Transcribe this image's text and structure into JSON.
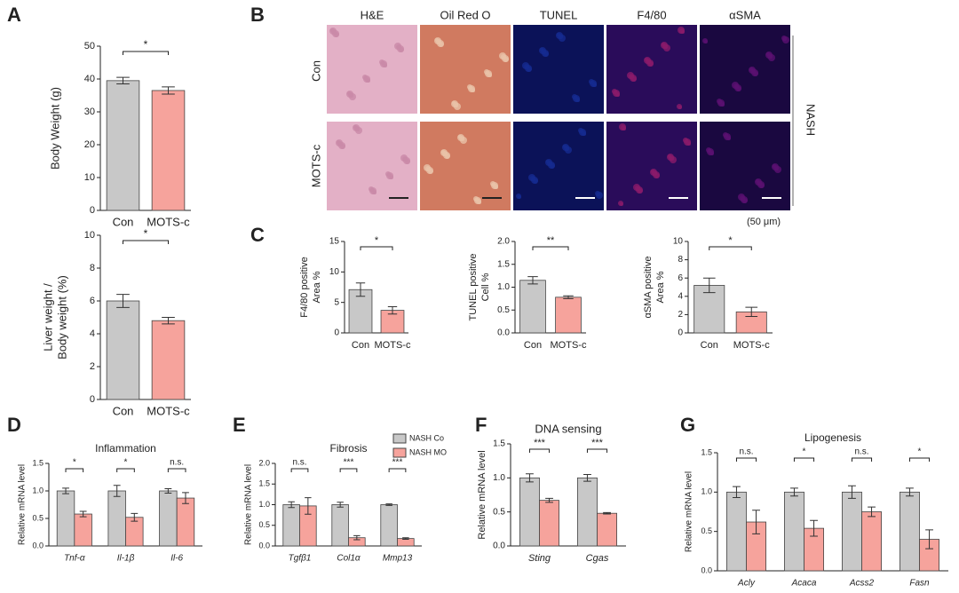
{
  "panel_labels": [
    "A",
    "B",
    "C",
    "D",
    "E",
    "F",
    "G"
  ],
  "histology": {
    "columns": [
      "H&E",
      "Oil Red O",
      "TUNEL",
      "F4/80",
      "αSMA"
    ],
    "rows": [
      "Con",
      "MOTS-c"
    ],
    "group": "NASH",
    "scale": "(50 μm)"
  },
  "chart_data": [
    {
      "type": "bar",
      "ylabel": [
        "Body Weight (g)"
      ],
      "categories": [
        "Con",
        "MOTS-c"
      ],
      "values": [
        39.5,
        36.5
      ],
      "errors": [
        1.0,
        1.1
      ],
      "colors": [
        "#c8c8c8",
        "#f6a39c"
      ],
      "ylim": [
        0,
        50
      ],
      "yticks": [
        0,
        10,
        20,
        30,
        40,
        50
      ],
      "significance": [
        "*"
      ]
    },
    {
      "type": "bar",
      "ylabel": [
        "Liver weight /",
        "Body weight (%)"
      ],
      "categories": [
        "Con",
        "MOTS-c"
      ],
      "values": [
        6.0,
        4.8
      ],
      "errors": [
        0.4,
        0.2
      ],
      "colors": [
        "#c8c8c8",
        "#f6a39c"
      ],
      "ylim": [
        0,
        10
      ],
      "yticks": [
        0,
        2,
        4,
        6,
        8,
        10
      ],
      "significance": [
        "*"
      ]
    },
    {
      "type": "bar",
      "ylabel": [
        "F4/80 positive",
        "Area %"
      ],
      "categories": [
        "Con",
        "MOTS-c"
      ],
      "values": [
        7.1,
        3.7
      ],
      "errors": [
        1.1,
        0.6
      ],
      "colors": [
        "#c8c8c8",
        "#f6a39c"
      ],
      "ylim": [
        0,
        15
      ],
      "yticks": [
        0,
        5,
        10,
        15
      ],
      "significance": [
        "*"
      ]
    },
    {
      "type": "bar",
      "ylabel": [
        "TUNEL positive",
        "Cell %"
      ],
      "categories": [
        "Con",
        "MOTS-c"
      ],
      "values": [
        1.15,
        0.78
      ],
      "errors": [
        0.08,
        0.03
      ],
      "colors": [
        "#c8c8c8",
        "#f6a39c"
      ],
      "ylim": [
        0,
        2
      ],
      "yticks": [
        {
          "value": 0,
          "label": "0.0"
        },
        0.5,
        {
          "value": 1,
          "label": "1.0"
        },
        1.5,
        {
          "value": 2,
          "label": "2.0"
        }
      ],
      "significance": [
        "**"
      ]
    },
    {
      "type": "bar",
      "ylabel": [
        "αSMA positive",
        "Area %"
      ],
      "categories": [
        "Con",
        "MOTS-c"
      ],
      "values": [
        5.2,
        2.3
      ],
      "errors": [
        0.8,
        0.5
      ],
      "colors": [
        "#c8c8c8",
        "#f6a39c"
      ],
      "ylim": [
        0,
        10
      ],
      "yticks": [
        0,
        2,
        4,
        6,
        8,
        10
      ],
      "significance": [
        "*"
      ]
    },
    {
      "type": "grouped-bar",
      "title": "Inflammation",
      "ylabel": [
        "Relative mRNA level"
      ],
      "categories": [
        "Tnf-α",
        "Il-1β",
        "Il-6"
      ],
      "italic_categories": true,
      "series": [
        {
          "color": "#c8c8c8",
          "values": [
            1.0,
            1.0,
            1.0
          ],
          "errors": [
            0.05,
            0.1,
            0.04
          ]
        },
        {
          "color": "#f6a39c",
          "values": [
            0.58,
            0.52,
            0.87
          ],
          "errors": [
            0.05,
            0.07,
            0.1
          ]
        }
      ],
      "ylim": [
        0,
        1.5
      ],
      "yticks": [
        {
          "value": 0,
          "label": "0.0"
        },
        0.5,
        {
          "value": 1,
          "label": "1.0"
        },
        1.5
      ],
      "significance": [
        "*",
        "*",
        "n.s."
      ]
    },
    {
      "type": "grouped-bar",
      "title": "Fibrosis",
      "ylabel": [
        "Relative mRNA level"
      ],
      "categories": [
        "Tgfβ1",
        "Col1α",
        "Mmp13"
      ],
      "italic_categories": true,
      "legend": true,
      "series": [
        {
          "name": "NASH Co",
          "color": "#c8c8c8",
          "values": [
            1.0,
            1.0,
            1.0
          ],
          "errors": [
            0.07,
            0.06,
            0.02
          ]
        },
        {
          "name": "NASH MO",
          "color": "#f6a39c",
          "values": [
            0.97,
            0.2,
            0.18
          ],
          "errors": [
            0.2,
            0.05,
            0.02
          ]
        }
      ],
      "ylim": [
        0,
        2
      ],
      "yticks": [
        {
          "value": 0,
          "label": "0.0"
        },
        0.5,
        {
          "value": 1,
          "label": "1.0"
        },
        1.5,
        {
          "value": 2,
          "label": "2.0"
        }
      ],
      "significance": [
        "n.s.",
        "***",
        "***"
      ]
    },
    {
      "type": "grouped-bar",
      "title": "DNA sensing",
      "ylabel": [
        "Relative mRNA level"
      ],
      "categories": [
        "Sting",
        "Cgas"
      ],
      "italic_categories": true,
      "series": [
        {
          "color": "#c8c8c8",
          "values": [
            1.0,
            1.0
          ],
          "errors": [
            0.06,
            0.05
          ]
        },
        {
          "color": "#f6a39c",
          "values": [
            0.67,
            0.48
          ],
          "errors": [
            0.03,
            0.01
          ]
        }
      ],
      "ylim": [
        0,
        1.5
      ],
      "yticks": [
        {
          "value": 0,
          "label": "0.0"
        },
        0.5,
        {
          "value": 1,
          "label": "1.0"
        },
        1.5
      ],
      "significance": [
        "***",
        "***"
      ]
    },
    {
      "type": "grouped-bar",
      "title": "Lipogenesis",
      "ylabel": [
        "Relative mRNA level"
      ],
      "categories": [
        "Acly",
        "Acaca",
        "Acss2",
        "Fasn"
      ],
      "italic_categories": true,
      "series": [
        {
          "color": "#c8c8c8",
          "values": [
            1.0,
            1.0,
            1.0,
            1.0
          ],
          "errors": [
            0.07,
            0.05,
            0.08,
            0.05
          ]
        },
        {
          "color": "#f6a39c",
          "values": [
            0.62,
            0.54,
            0.75,
            0.4
          ],
          "errors": [
            0.15,
            0.1,
            0.06,
            0.12
          ]
        }
      ],
      "ylim": [
        0,
        1.5
      ],
      "yticks": [
        {
          "value": 0,
          "label": "0.0"
        },
        0.5,
        {
          "value": 1,
          "label": "1.0"
        },
        1.5
      ],
      "significance": [
        "n.s.",
        "*",
        "n.s.",
        "*"
      ]
    }
  ]
}
